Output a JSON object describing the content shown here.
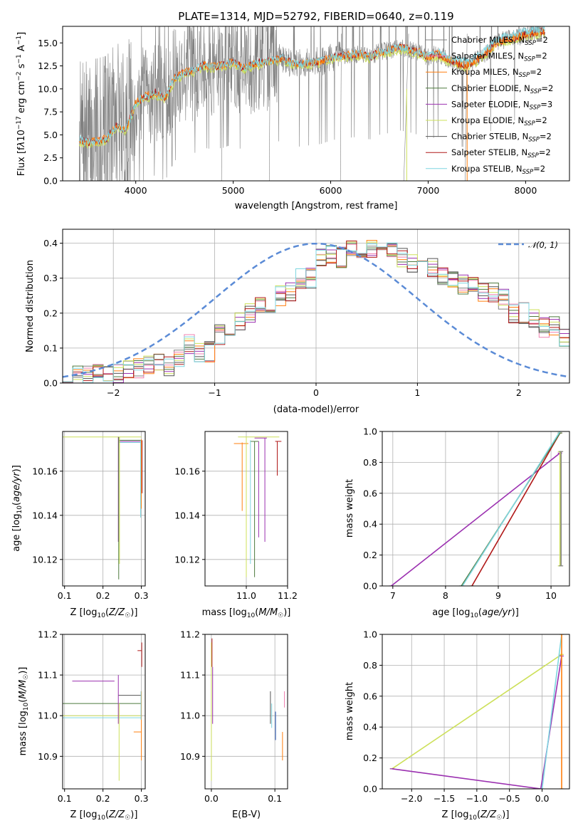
{
  "colors": {
    "gray": "#808080",
    "orange": "#ff7f0e",
    "darkgreen": "#4e7a3e",
    "purple": "#9b30b0",
    "lime": "#cde05a",
    "darkgray": "#555555",
    "red": "#b01818",
    "cyan": "#7fd6e0",
    "pink": "#f080b0",
    "blue": "#1f4fb0",
    "dash": "#5b8bd6"
  },
  "chart_data": [
    {
      "id": "spectrum",
      "type": "line",
      "title": "PLATE=1314, MJD=52792, FIBERID=0640, z=0.119",
      "xlabel": "wavelength [Angstrom, rest frame]",
      "ylabel": "Flux [f_λ10^-17 erg cm^-2 s^-1 A^-1]",
      "xlim": [
        3250,
        8450
      ],
      "ylim": [
        0,
        16.8
      ],
      "xticks": [
        4000,
        5000,
        6000,
        7000,
        8000
      ],
      "yticks": [
        0.0,
        2.5,
        5.0,
        7.5,
        10.0,
        12.5,
        15.0
      ],
      "ytick_labels": [
        "0.0",
        "2.5",
        "5.0",
        "7.5",
        "10.0",
        "12.5",
        "15.0"
      ],
      "legend_position": "upper-right",
      "series": [
        {
          "name": "Chabrier MILES, N_SSP=2",
          "color": "#808080"
        },
        {
          "name": "Salpeter MILES, N_SSP=2",
          "color": "#f080b0"
        },
        {
          "name": "Kroupa MILES, N_SSP=2",
          "color": "#ff7f0e"
        },
        {
          "name": "Chabrier ELODIE, N_SSP=2",
          "color": "#4e7a3e"
        },
        {
          "name": "Salpeter ELODIE, N_SSP=3",
          "color": "#9b30b0"
        },
        {
          "name": "Kroupa ELODIE, N_SSP=2",
          "color": "#cde05a"
        },
        {
          "name": "Chabrier STELIB, N_SSP=2",
          "color": "#555555"
        },
        {
          "name": "Salpeter STELIB, N_SSP=2",
          "color": "#b01818"
        },
        {
          "name": "Kroupa STELIB, N_SSP=2",
          "color": "#7fd6e0"
        }
      ],
      "model_curve": {
        "x": [
          3420,
          3500,
          3600,
          3700,
          3800,
          3900,
          4000,
          4100,
          4200,
          4300,
          4400,
          4500,
          4600,
          4700,
          4800,
          4900,
          5000,
          5100,
          5200,
          5300,
          5400,
          5500,
          5600,
          5700,
          5800,
          5900,
          6000,
          6100,
          6200,
          6300,
          6400,
          6500,
          6600,
          6700,
          6800,
          6900,
          7000,
          7100,
          7200,
          7300,
          7400,
          7500,
          7600,
          7700,
          7800,
          7900,
          8000,
          8100,
          8200
        ],
        "y": [
          4.5,
          4.2,
          4.3,
          4.6,
          6.0,
          5.5,
          8.5,
          9.2,
          9.6,
          9.0,
          11.2,
          11.8,
          12.0,
          12.6,
          12.4,
          12.6,
          13.0,
          12.3,
          12.6,
          13.0,
          13.1,
          13.4,
          12.8,
          12.7,
          12.9,
          13.0,
          13.4,
          13.6,
          13.7,
          13.8,
          13.5,
          14.0,
          14.2,
          14.5,
          14.3,
          14.0,
          13.5,
          13.8,
          13.2,
          12.8,
          12.6,
          13.2,
          14.0,
          15.0,
          15.4,
          15.6,
          15.9,
          16.1,
          16.3
        ]
      }
    },
    {
      "id": "residuals",
      "type": "step",
      "xlabel": "(data-model)/error",
      "ylabel": "Normed distribution",
      "xlim": [
        -2.5,
        2.5
      ],
      "ylim": [
        0,
        0.44
      ],
      "xticks": [
        -2,
        -1,
        0,
        1,
        2
      ],
      "xtick_labels": [
        "−2",
        "−1",
        "0",
        "1",
        "2"
      ],
      "yticks": [
        0.0,
        0.1,
        0.2,
        0.3,
        0.4
      ],
      "ytick_labels": [
        "0.0",
        "0.1",
        "0.2",
        "0.3",
        "0.4"
      ],
      "legend": "𝒩(0, 1)",
      "legend_position": "upper-right",
      "bin_edges": [
        -2.5,
        -2.4,
        -2.3,
        -2.2,
        -2.1,
        -2.0,
        -1.9,
        -1.8,
        -1.7,
        -1.6,
        -1.5,
        -1.4,
        -1.3,
        -1.2,
        -1.1,
        -1.0,
        -0.9,
        -0.8,
        -0.7,
        -0.6,
        -0.5,
        -0.4,
        -0.3,
        -0.2,
        -0.1,
        0.0,
        0.1,
        0.2,
        0.3,
        0.4,
        0.5,
        0.6,
        0.7,
        0.8,
        0.9,
        1.0,
        1.1,
        1.2,
        1.3,
        1.4,
        1.5,
        1.6,
        1.7,
        1.8,
        1.9,
        2.0,
        2.1,
        2.2,
        2.3,
        2.4,
        2.5
      ],
      "base_heights": [
        0.015,
        0.02,
        0.02,
        0.03,
        0.035,
        0.03,
        0.04,
        0.04,
        0.05,
        0.06,
        0.05,
        0.07,
        0.11,
        0.09,
        0.09,
        0.14,
        0.16,
        0.18,
        0.2,
        0.22,
        0.22,
        0.25,
        0.26,
        0.3,
        0.3,
        0.36,
        0.37,
        0.36,
        0.38,
        0.36,
        0.38,
        0.37,
        0.38,
        0.36,
        0.34,
        0.33,
        0.33,
        0.3,
        0.3,
        0.28,
        0.28,
        0.26,
        0.26,
        0.24,
        0.2,
        0.2,
        0.18,
        0.16,
        0.16,
        0.13
      ],
      "normal": {
        "mu": 0,
        "sigma": 1
      }
    },
    {
      "id": "age-vs-Z",
      "type": "errorbar",
      "xlabel": "Z [log10(Z/Z☉)]",
      "ylabel": "age  [log10(age/yr)]",
      "xlim": [
        0.095,
        0.31
      ],
      "ylim": [
        10.108,
        10.178
      ],
      "xticks": [
        0.1,
        0.2,
        0.3
      ],
      "xtick_labels": [
        "0.1",
        "0.2",
        "0.3"
      ],
      "yticks": [
        10.12,
        10.14,
        10.16
      ],
      "ytick_labels": [
        "10.12",
        "10.14",
        "10.16"
      ]
    },
    {
      "id": "age-vs-mass",
      "type": "errorbar",
      "xlabel": "mass [log10(M/M☉)]",
      "ylabel": "",
      "xlim": [
        10.8,
        11.2
      ],
      "ylim": [
        10.108,
        10.178
      ],
      "xticks": [
        11.0,
        11.2
      ],
      "xtick_labels": [
        "11.0",
        "11.2"
      ],
      "yticks": [
        10.12,
        10.14,
        10.16
      ],
      "ytick_labels": [
        "10.12",
        "10.14",
        "10.16"
      ]
    },
    {
      "id": "massweight-vs-age",
      "type": "line",
      "xlabel": "age  [log10(age/yr)]",
      "ylabel": "mass weight",
      "xlim": [
        6.8,
        10.35
      ],
      "ylim": [
        0,
        1
      ],
      "xticks": [
        7,
        8,
        9,
        10
      ],
      "xtick_labels": [
        "7",
        "8",
        "9",
        "10"
      ],
      "yticks": [
        0.0,
        0.2,
        0.4,
        0.6,
        0.8,
        1.0
      ],
      "ytick_labels": [
        "0.0",
        "0.2",
        "0.4",
        "0.6",
        "0.8",
        "1.0"
      ],
      "lines": [
        {
          "x": [
            6.97,
            10.17
          ],
          "y": [
            0.0,
            0.86
          ],
          "color": "#9b30b0"
        },
        {
          "x": [
            8.5,
            10.17
          ],
          "y": [
            0.0,
            0.99
          ],
          "color": "#b01818"
        },
        {
          "x": [
            8.3,
            10.17
          ],
          "y": [
            0.0,
            0.99
          ],
          "color": "#4e7a3e"
        },
        {
          "x": [
            8.32,
            10.17
          ],
          "y": [
            0.0,
            1.0
          ],
          "color": "#7fd6e0"
        },
        {
          "x": [
            10.17,
            10.17
          ],
          "y": [
            0.13,
            0.87
          ],
          "color": "#cde05a"
        },
        {
          "x": [
            10.19,
            10.19
          ],
          "y": [
            0.13,
            0.87
          ],
          "color": "#808080"
        }
      ]
    },
    {
      "id": "mass-vs-Z",
      "type": "errorbar",
      "xlabel": "Z [log10(Z/Z☉)]",
      "ylabel": "mass [log10(M/M☉)]",
      "xlim": [
        0.095,
        0.31
      ],
      "ylim": [
        10.82,
        11.2
      ],
      "xticks": [
        0.1,
        0.2,
        0.3
      ],
      "xtick_labels": [
        "0.1",
        "0.2",
        "0.3"
      ],
      "yticks": [
        10.9,
        11.0,
        11.1,
        11.2
      ],
      "ytick_labels": [
        "10.9",
        "11.0",
        "11.1",
        "11.2"
      ]
    },
    {
      "id": "mass-vs-ebv",
      "type": "errorbar",
      "xlabel": "E(B-V)",
      "ylabel": "",
      "xlim": [
        -0.01,
        0.12
      ],
      "ylim": [
        10.82,
        11.2
      ],
      "xticks": [
        0.0,
        0.1
      ],
      "xtick_labels": [
        "0.0",
        "0.1"
      ],
      "yticks": [
        10.9,
        11.0,
        11.1,
        11.2
      ],
      "ytick_labels": [
        "10.9",
        "11.0",
        "11.1",
        "11.2"
      ]
    },
    {
      "id": "massweight-vs-Z",
      "type": "line",
      "xlabel": "Z [log10(Z/Z☉)]",
      "ylabel": "mass weight",
      "xlim": [
        -2.45,
        0.42
      ],
      "ylim": [
        0,
        1
      ],
      "xticks": [
        -2.0,
        -1.5,
        -1.0,
        -0.5,
        0.0
      ],
      "xtick_labels": [
        "−2.0",
        "−1.5",
        "−1.0",
        "−0.5",
        "0.0"
      ],
      "yticks": [
        0.0,
        0.2,
        0.4,
        0.6,
        0.8,
        1.0
      ],
      "ytick_labels": [
        "0.0",
        "0.2",
        "0.4",
        "0.6",
        "0.8",
        "1.0"
      ],
      "lines": [
        {
          "x": [
            -2.3,
            0.3
          ],
          "y": [
            0.13,
            0.87
          ],
          "color": "#cde05a"
        },
        {
          "x": [
            -2.3,
            -0.02
          ],
          "y": [
            0.13,
            0.0
          ],
          "color": "#9b30b0"
        },
        {
          "x": [
            -0.02,
            0.3
          ],
          "y": [
            0.0,
            0.86
          ],
          "color": "#9b30b0"
        },
        {
          "x": [
            0.0,
            0.3
          ],
          "y": [
            0.0,
            1.0
          ],
          "color": "#7fd6e0"
        },
        {
          "x": [
            0.3,
            0.3
          ],
          "y": [
            0.0,
            1.0
          ],
          "color": "#ff7f0e"
        }
      ]
    }
  ]
}
